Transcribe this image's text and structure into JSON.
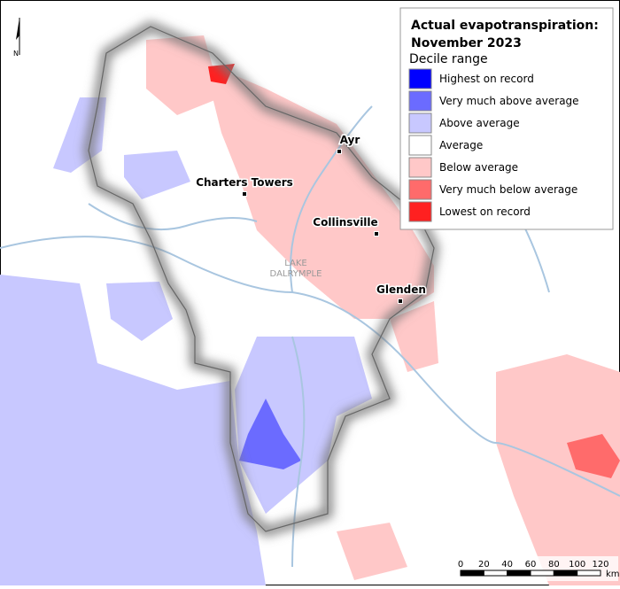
{
  "north": "N",
  "legend": {
    "title": "Actual evapotranspiration:",
    "subtitle": "November 2023",
    "heading": "Decile range",
    "items": [
      {
        "label": "Highest on record",
        "color": "#0000ff"
      },
      {
        "label": "Very much above average",
        "color": "#6b6bff"
      },
      {
        "label": "Above average",
        "color": "#c8c8ff"
      },
      {
        "label": "Average",
        "color": "#ffffff"
      },
      {
        "label": "Below average",
        "color": "#ffc8c8"
      },
      {
        "label": "Very much below average",
        "color": "#ff6b6b"
      },
      {
        "label": "Lowest on record",
        "color": "#ff2020"
      }
    ]
  },
  "places": [
    "Ayr",
    "Charters Towers",
    "Collinsville",
    "Glenden"
  ],
  "lake": [
    "LAKE",
    "DALRYMPLE"
  ],
  "scale": {
    "ticks": [
      0,
      20,
      40,
      60,
      80,
      100,
      120
    ],
    "unit": "km"
  }
}
